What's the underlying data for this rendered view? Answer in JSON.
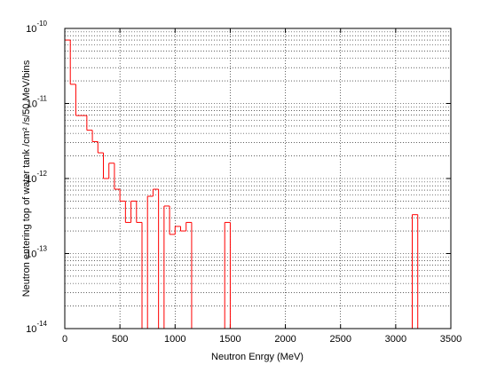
{
  "chart_data": {
    "type": "histogram",
    "xlabel": "Neutron Enrgy (MeV)",
    "ylabel": "Neutron entering top of water tank /cm² /s/50 MeV/bins",
    "bins": [
      0,
      50,
      100,
      150,
      200,
      250,
      300,
      350,
      400,
      450,
      500,
      550,
      600,
      650,
      700,
      750,
      800,
      850,
      900,
      950,
      1000,
      1050,
      1100,
      1150,
      1200,
      1250,
      1300,
      1350,
      1400,
      1450,
      1500,
      1550,
      1600,
      1650,
      1700,
      1750,
      1800,
      1850,
      1900,
      1950,
      2000,
      2050,
      2100,
      2150,
      2200,
      2250,
      2300,
      2350,
      2400,
      2450,
      2500,
      2550,
      2600,
      2650,
      2700,
      2750,
      2800,
      2850,
      2900,
      2950,
      3000,
      3050,
      3100,
      3150,
      3200,
      3250,
      3300,
      3350,
      3400,
      3450,
      3500
    ],
    "values": [
      7e-11,
      1.8e-11,
      6.9e-12,
      6.9e-12,
      4.4e-12,
      3.1e-12,
      2.2e-12,
      1e-12,
      1.6e-12,
      7.2e-13,
      5e-13,
      2.6e-13,
      5e-13,
      2.6e-13,
      0,
      5.8e-13,
      7.2e-13,
      0,
      4.3e-13,
      1.8e-13,
      2.3e-13,
      2e-13,
      2.6e-13,
      0,
      0,
      0,
      0,
      0,
      0,
      2.6e-13,
      0,
      0,
      0,
      0,
      0,
      0,
      0,
      0,
      0,
      0,
      0,
      0,
      0,
      0,
      0,
      0,
      0,
      0,
      0,
      0,
      0,
      0,
      0,
      0,
      0,
      0,
      0,
      0,
      0,
      0,
      0,
      0,
      0,
      3.3e-13,
      0,
      0,
      0,
      0,
      0,
      0
    ],
    "color": "#ff0000",
    "xlim": [
      0,
      3500
    ],
    "xticks": [
      0,
      500,
      1000,
      1500,
      2000,
      2500,
      3000,
      3500
    ],
    "ylim": [
      1e-14,
      1e-10
    ],
    "yscale": "log",
    "yticks": [
      {
        "value": 1e-14,
        "label": "10",
        "exponent": "-14"
      },
      {
        "value": 1e-13,
        "label": "10",
        "exponent": "-13"
      },
      {
        "value": 1e-12,
        "label": "10",
        "exponent": "-12"
      },
      {
        "value": 1e-11,
        "label": "10",
        "exponent": "-11"
      },
      {
        "value": 1e-10,
        "label": "10",
        "exponent": "-10"
      }
    ],
    "grid": true,
    "minor_grid": true
  }
}
